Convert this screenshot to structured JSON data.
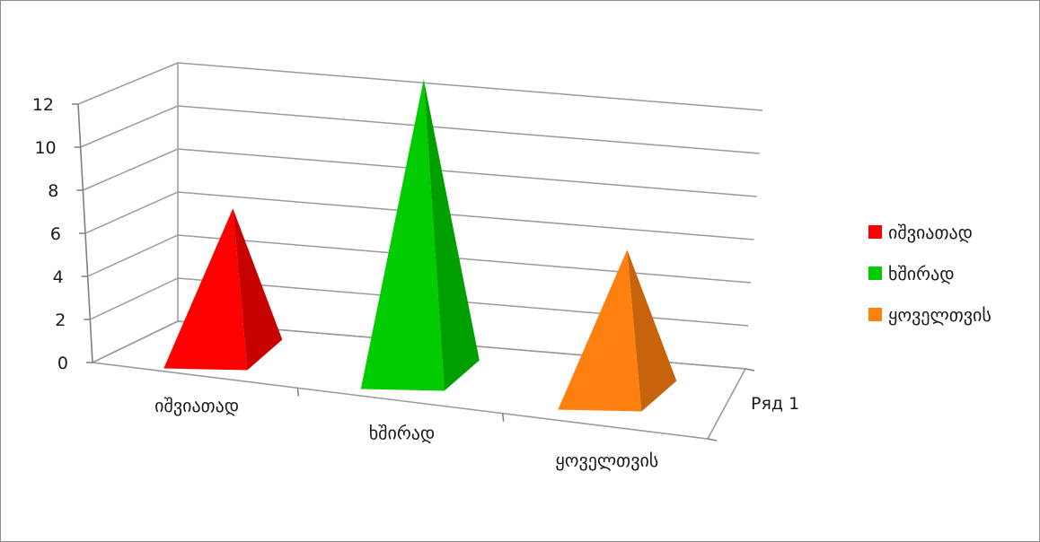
{
  "chart_data": {
    "type": "bar",
    "style": "3d-pyramid",
    "categories": [
      "იშვიათად",
      "ხშირად",
      "ყოველთვის"
    ],
    "series": [
      {
        "name": "Ряд 1",
        "values": [
          5,
          11,
          5
        ]
      }
    ],
    "point_colors": [
      "#ff0000",
      "#00cc00",
      "#ff7f0f"
    ],
    "y_ticks": [
      "0",
      "2",
      "4",
      "6",
      "8",
      "10",
      "12"
    ],
    "ylim": [
      0,
      12
    ],
    "grid": true,
    "legend": {
      "position": "right",
      "entries": [
        "იშვიათად",
        "ხშირად",
        "ყოველთვის"
      ]
    }
  }
}
